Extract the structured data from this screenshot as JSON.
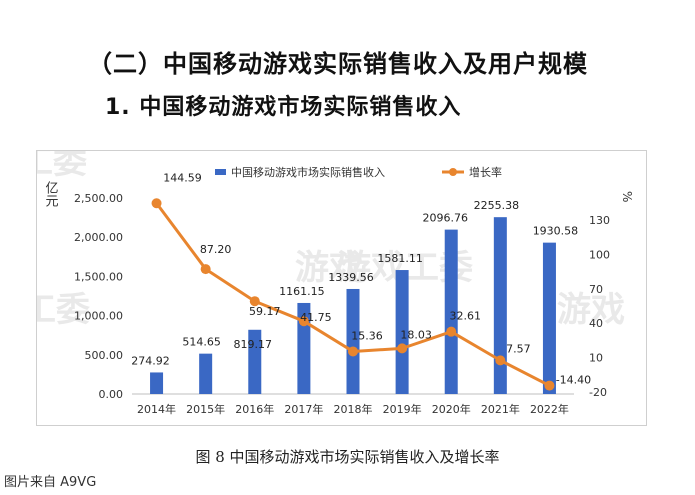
{
  "heading": "（二）中国移动游戏实际销售收入及用户规模",
  "subheading": "1. 中国移动游戏市场实际销售收入",
  "caption": "图 8 中国移动游戏市场实际销售收入及增长率",
  "source": "图片来自 A9VG",
  "watermarks": [
    "工委",
    "游戏",
    "游戏工委",
    "工委",
    "游戏"
  ],
  "chart_data": {
    "type": "bar+line",
    "categories": [
      "2014年",
      "2015年",
      "2016年",
      "2017年",
      "2018年",
      "2019年",
      "2020年",
      "2021年",
      "2022年"
    ],
    "series": [
      {
        "name": "中国移动游戏市场实际销售收入",
        "type": "bar",
        "axis": "left",
        "color": "#3a68c4",
        "values": [
          274.92,
          514.65,
          819.17,
          1161.15,
          1339.56,
          1581.11,
          2096.76,
          2255.38,
          1930.58
        ],
        "labels": [
          "274.92",
          "514.65",
          "819.17",
          "1161.15",
          "1339.56",
          "1581.11",
          "2096.76",
          "2255.38",
          "1930.58"
        ]
      },
      {
        "name": "增长率",
        "type": "line",
        "axis": "right",
        "color": "#e8852e",
        "values": [
          144.59,
          87.2,
          59.17,
          41.75,
          15.36,
          18.03,
          32.61,
          7.57,
          -14.4
        ],
        "labels": [
          "144.59",
          "87.20",
          "59.17",
          "41.75",
          "15.36",
          "18.03",
          "32.61",
          "7.57",
          "-14.40"
        ]
      }
    ],
    "y_left": {
      "label": "亿元",
      "ylim": [
        0,
        2500
      ],
      "ticks": [
        "0.00",
        "500.00",
        "1,000.00",
        "1,500.00",
        "2,000.00",
        "2,500.00"
      ],
      "tick_values": [
        0,
        500,
        1000,
        1500,
        2000,
        2500
      ]
    },
    "y_right": {
      "label": "%",
      "ylim": [
        -20,
        150
      ],
      "ticks": [
        "-20",
        "10",
        "40",
        "70",
        "100",
        "130"
      ],
      "tick_values": [
        -20,
        10,
        40,
        70,
        100,
        130
      ]
    },
    "grid": false,
    "legend_position": "top"
  }
}
